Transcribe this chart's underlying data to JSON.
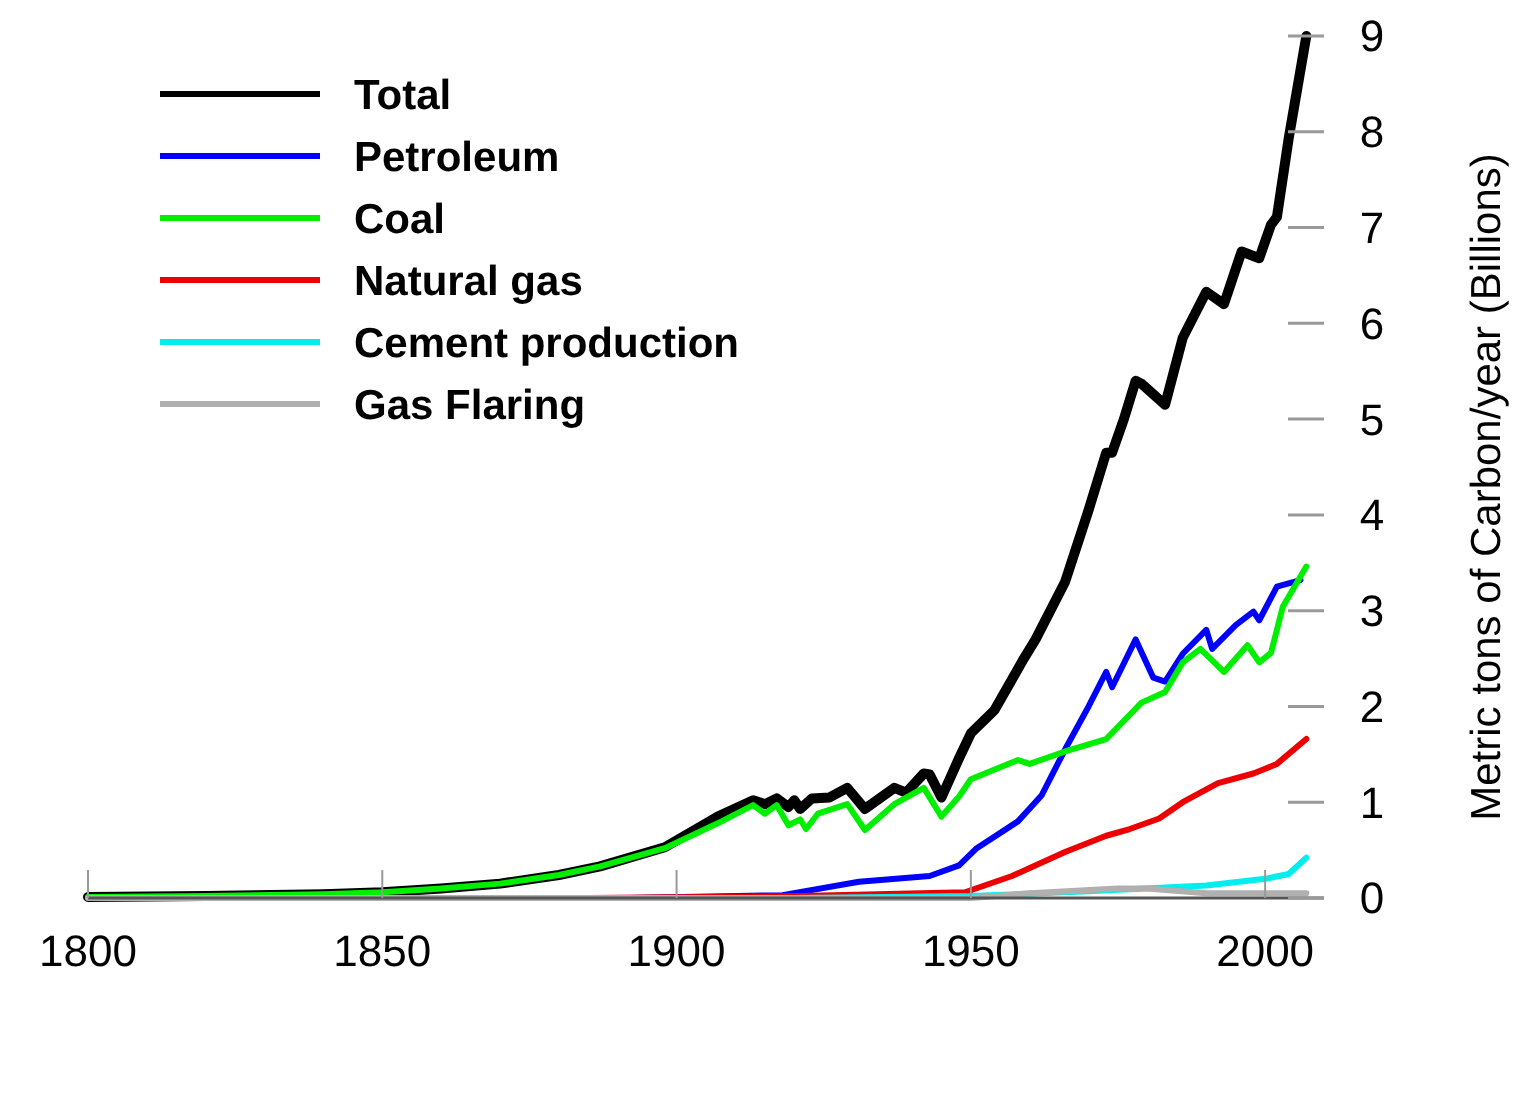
{
  "chart_data": {
    "type": "line",
    "ylabel": "Metric tons of Carbon/year (Billions)",
    "xlim": [
      1800,
      2010
    ],
    "xticks": [
      1800,
      1850,
      1900,
      1950,
      2000
    ],
    "ylim": [
      0,
      9
    ],
    "yticks": [
      0,
      1,
      2,
      3,
      4,
      5,
      6,
      7,
      8,
      9
    ],
    "grid": false,
    "legend": "top left",
    "marker": "none",
    "line_style": "solid",
    "series": [
      {
        "name": "Total",
        "color": "#000000",
        "x": [
          1800,
          1820,
          1840,
          1850,
          1860,
          1870,
          1880,
          1887,
          1898,
          1907,
          1913,
          1915,
          1917,
          1919,
          1920,
          1921,
          1923,
          1926,
          1929,
          1932,
          1937,
          1939,
          1942,
          1943,
          1945,
          1948,
          1950,
          1954,
          1959,
          1961,
          1966,
          1970,
          1973,
          1974,
          1976,
          1978,
          1979,
          1983,
          1986,
          1990,
          1993,
          1996,
          1999,
          2001,
          2002,
          2004,
          2007
        ],
        "values": [
          0.01,
          0.02,
          0.04,
          0.06,
          0.1,
          0.15,
          0.24,
          0.33,
          0.53,
          0.85,
          1.02,
          0.98,
          1.04,
          0.95,
          1.02,
          0.93,
          1.04,
          1.05,
          1.15,
          0.93,
          1.15,
          1.1,
          1.3,
          1.29,
          1.05,
          1.46,
          1.72,
          1.96,
          2.5,
          2.7,
          3.3,
          4.05,
          4.65,
          4.65,
          5.0,
          5.4,
          5.37,
          5.15,
          5.85,
          6.33,
          6.2,
          6.75,
          6.68,
          7.03,
          7.11,
          7.93,
          9.0
        ]
      },
      {
        "name": "Petroleum",
        "color": "#0000ff",
        "x": [
          1870,
          1892,
          1918,
          1931,
          1943,
          1948,
          1951,
          1958,
          1962,
          1966,
          1970,
          1973,
          1974,
          1978,
          1981,
          1983,
          1986,
          1990,
          1991,
          1995,
          1998,
          1999,
          2002,
          2006
        ],
        "values": [
          0,
          0,
          0.03,
          0.17,
          0.23,
          0.34,
          0.52,
          0.8,
          1.07,
          1.55,
          2.0,
          2.36,
          2.2,
          2.7,
          2.3,
          2.26,
          2.55,
          2.8,
          2.6,
          2.85,
          2.99,
          2.9,
          3.25,
          3.32
        ]
      },
      {
        "name": "Coal",
        "color": "#00ee00",
        "x": [
          1800,
          1820,
          1840,
          1850,
          1860,
          1870,
          1880,
          1887,
          1898,
          1907,
          1913,
          1915,
          1917,
          1919,
          1921,
          1922,
          1924,
          1929,
          1932,
          1937,
          1942,
          1945,
          1948,
          1950,
          1958,
          1960,
          1966,
          1973,
          1979,
          1983,
          1986,
          1989,
          1993,
          1997,
          1999,
          2001,
          2003,
          2007
        ],
        "values": [
          0.01,
          0.02,
          0.04,
          0.06,
          0.1,
          0.15,
          0.24,
          0.33,
          0.52,
          0.78,
          0.97,
          0.88,
          0.97,
          0.76,
          0.82,
          0.72,
          0.88,
          0.98,
          0.71,
          0.98,
          1.15,
          0.85,
          1.06,
          1.24,
          1.44,
          1.4,
          1.53,
          1.66,
          2.04,
          2.15,
          2.46,
          2.6,
          2.36,
          2.64,
          2.46,
          2.56,
          3.04,
          3.46
        ]
      },
      {
        "name": "Natural gas",
        "color": "#ee0000",
        "x": [
          1885,
          1921,
          1949,
          1957,
          1966,
          1973,
          1977,
          1982,
          1986,
          1992,
          1998,
          2002,
          2007
        ],
        "values": [
          0,
          0.02,
          0.06,
          0.23,
          0.48,
          0.65,
          0.72,
          0.83,
          1.0,
          1.2,
          1.3,
          1.4,
          1.66
        ]
      },
      {
        "name": "Cement production",
        "color": "#00eeee",
        "x": [
          1920,
          1950,
          1970,
          1990,
          2000,
          2004,
          2007
        ],
        "values": [
          0,
          0.02,
          0.07,
          0.13,
          0.2,
          0.25,
          0.42
        ]
      },
      {
        "name": "Gas Flaring",
        "color": "#b0b0b0",
        "x": [
          1800,
          1950,
          1960,
          1975,
          1980,
          1990,
          2007
        ],
        "values": [
          0,
          0,
          0.05,
          0.1,
          0.1,
          0.05,
          0.05
        ]
      }
    ]
  }
}
